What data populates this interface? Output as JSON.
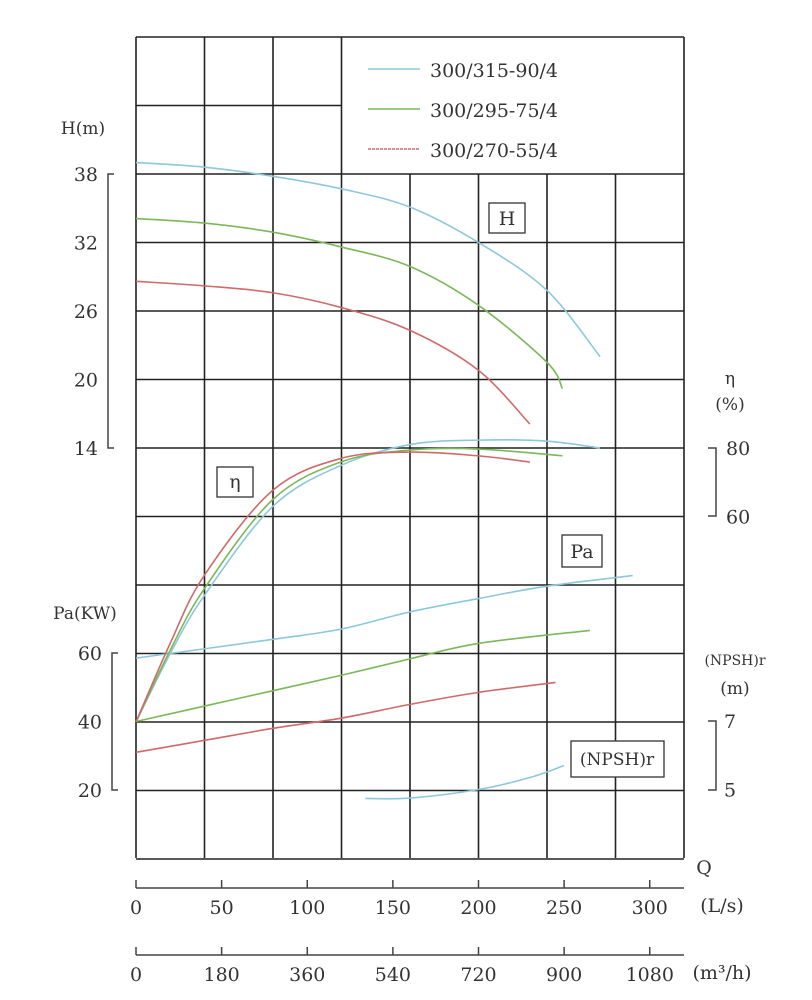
{
  "chart_data": {
    "type": "line",
    "grid": true,
    "legend_placement": "top-right",
    "legend": [
      "300/315-90/4",
      "300/295-75/4",
      "300/270-55/4"
    ],
    "colors": [
      "#8cc8dc",
      "#7ab85a",
      "#d06a6a"
    ],
    "x_axis": {
      "label": "Q",
      "range_ls": [
        0,
        320
      ],
      "primary": {
        "unit": "(L/s)",
        "ticks": [
          "0",
          "50",
          "100",
          "150",
          "200",
          "250",
          "300"
        ]
      },
      "secondary": {
        "unit": "(m³/h)",
        "ticks": [
          "0",
          "180",
          "360",
          "540",
          "720",
          "900",
          "1080"
        ]
      }
    },
    "axes": {
      "H": {
        "label": "H(m)",
        "ticks": [
          "38",
          "32",
          "26",
          "20",
          "14"
        ],
        "box_label": "H"
      },
      "eta": {
        "label": "η",
        "unit": "(%)",
        "ticks": [
          "80",
          "60"
        ],
        "box_label": "η"
      },
      "Pa": {
        "label": "Pa(KW)",
        "ticks": [
          "60",
          "40",
          "20"
        ],
        "box_label": "Pa"
      },
      "NPSH": {
        "label": "(NPSH)r",
        "unit": "(m)",
        "ticks": [
          "7",
          "5"
        ],
        "box_label": "(NPSH)r"
      }
    },
    "series": [
      {
        "name": "300/315-90/4",
        "H": [
          [
            0,
            39
          ],
          [
            40,
            38.6
          ],
          [
            80,
            37.8
          ],
          [
            120,
            36.7
          ],
          [
            160,
            35.1
          ],
          [
            200,
            32
          ],
          [
            240,
            27.8
          ],
          [
            271,
            22
          ]
        ],
        "eta": [
          [
            0,
            0
          ],
          [
            20,
            20
          ],
          [
            40,
            37
          ],
          [
            80,
            63
          ],
          [
            120,
            75
          ],
          [
            160,
            81
          ],
          [
            200,
            82.3
          ],
          [
            240,
            82
          ],
          [
            271,
            80
          ]
        ],
        "Pa": [
          [
            0,
            58.5
          ],
          [
            80,
            64
          ],
          [
            120,
            67
          ],
          [
            160,
            72
          ],
          [
            200,
            75.9
          ],
          [
            240,
            79.5
          ],
          [
            290,
            82.6
          ]
        ],
        "NPSH": [
          [
            134,
            4.74
          ],
          [
            160,
            4.75
          ],
          [
            200,
            5
          ],
          [
            230,
            5.35
          ],
          [
            250,
            5.7
          ]
        ]
      },
      {
        "name": "300/295-75/4",
        "H": [
          [
            0,
            34.1
          ],
          [
            40,
            33.7
          ],
          [
            80,
            32.9
          ],
          [
            120,
            31.6
          ],
          [
            160,
            29.9
          ],
          [
            200,
            26.5
          ],
          [
            240,
            21.5
          ],
          [
            249,
            19.2
          ]
        ],
        "eta": [
          [
            0,
            0
          ],
          [
            20,
            21
          ],
          [
            40,
            39
          ],
          [
            80,
            65
          ],
          [
            120,
            76
          ],
          [
            160,
            79.4
          ],
          [
            200,
            79.7
          ],
          [
            249,
            77.7
          ]
        ],
        "Pa": [
          [
            0,
            40
          ],
          [
            40,
            44.5
          ],
          [
            80,
            49
          ],
          [
            120,
            53.5
          ],
          [
            160,
            58.3
          ],
          [
            200,
            62.8
          ],
          [
            265,
            66.6
          ]
        ],
        "NPSH": []
      },
      {
        "name": "300/270-55/4",
        "H": [
          [
            0,
            28.6
          ],
          [
            40,
            28.2
          ],
          [
            80,
            27.6
          ],
          [
            120,
            26.3
          ],
          [
            160,
            24.3
          ],
          [
            200,
            20.8
          ],
          [
            230,
            16.1
          ]
        ],
        "eta": [
          [
            0,
            0
          ],
          [
            20,
            23
          ],
          [
            40,
            42.9
          ],
          [
            80,
            67.7
          ],
          [
            120,
            77
          ],
          [
            160,
            78.8
          ],
          [
            200,
            77.7
          ],
          [
            230,
            75.9
          ]
        ],
        "Pa": [
          [
            0,
            31
          ],
          [
            40,
            34.5
          ],
          [
            80,
            38
          ],
          [
            120,
            41
          ],
          [
            160,
            45
          ],
          [
            200,
            48.5
          ],
          [
            245,
            51.4
          ]
        ],
        "NPSH": []
      }
    ]
  }
}
